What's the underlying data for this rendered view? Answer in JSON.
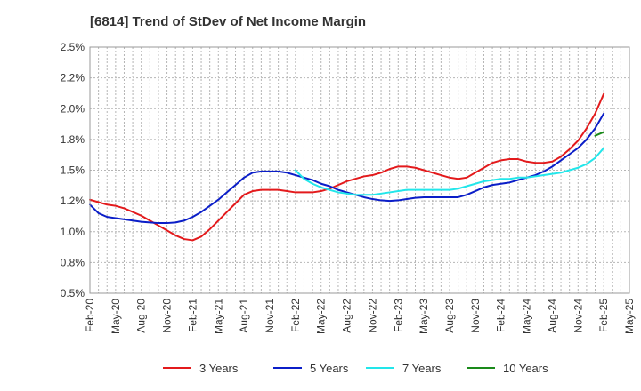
{
  "chart_data": {
    "type": "line",
    "title": "[6814]  Trend of StDev of Net Income Margin",
    "xlabel": "",
    "ylabel": "",
    "y_ticks": [
      "0.5%",
      "0.8%",
      "1.0%",
      "1.2%",
      "1.5%",
      "1.8%",
      "2.0%",
      "2.2%",
      "2.5%"
    ],
    "y_tick_values": [
      0.5,
      0.75,
      1.0,
      1.25,
      1.5,
      1.75,
      2.0,
      2.25,
      2.5
    ],
    "ylim": [
      0.5,
      2.5
    ],
    "x_ticks": [
      "Feb-20",
      "May-20",
      "Aug-20",
      "Nov-20",
      "Feb-21",
      "May-21",
      "Aug-21",
      "Nov-21",
      "Feb-22",
      "May-22",
      "Aug-22",
      "Nov-22",
      "Feb-23",
      "May-23",
      "Aug-23",
      "Nov-23",
      "Feb-24",
      "May-24",
      "Aug-24",
      "Nov-24",
      "Feb-25",
      "May-25"
    ],
    "grid": true,
    "legend_position": "bottom",
    "series": [
      {
        "name": "3 Years",
        "color": "#e31a1c",
        "points": [
          [
            "Feb-20",
            1.26
          ],
          [
            "Mar-20",
            1.24
          ],
          [
            "Apr-20",
            1.22
          ],
          [
            "May-20",
            1.21
          ],
          [
            "Jun-20",
            1.19
          ],
          [
            "Jul-20",
            1.16
          ],
          [
            "Aug-20",
            1.13
          ],
          [
            "Sep-20",
            1.09
          ],
          [
            "Oct-20",
            1.05
          ],
          [
            "Nov-20",
            1.01
          ],
          [
            "Dec-20",
            0.97
          ],
          [
            "Jan-21",
            0.94
          ],
          [
            "Feb-21",
            0.93
          ],
          [
            "Mar-21",
            0.96
          ],
          [
            "Apr-21",
            1.02
          ],
          [
            "May-21",
            1.09
          ],
          [
            "Jun-21",
            1.16
          ],
          [
            "Jul-21",
            1.23
          ],
          [
            "Aug-21",
            1.3
          ],
          [
            "Sep-21",
            1.33
          ],
          [
            "Oct-21",
            1.34
          ],
          [
            "Nov-21",
            1.34
          ],
          [
            "Dec-21",
            1.34
          ],
          [
            "Jan-22",
            1.33
          ],
          [
            "Feb-22",
            1.32
          ],
          [
            "Mar-22",
            1.32
          ],
          [
            "Apr-22",
            1.32
          ],
          [
            "May-22",
            1.33
          ],
          [
            "Jun-22",
            1.35
          ],
          [
            "Jul-22",
            1.38
          ],
          [
            "Aug-22",
            1.41
          ],
          [
            "Sep-22",
            1.43
          ],
          [
            "Oct-22",
            1.45
          ],
          [
            "Nov-22",
            1.46
          ],
          [
            "Dec-22",
            1.48
          ],
          [
            "Jan-23",
            1.51
          ],
          [
            "Feb-23",
            1.53
          ],
          [
            "Mar-23",
            1.53
          ],
          [
            "Apr-23",
            1.52
          ],
          [
            "May-23",
            1.5
          ],
          [
            "Jun-23",
            1.48
          ],
          [
            "Jul-23",
            1.46
          ],
          [
            "Aug-23",
            1.44
          ],
          [
            "Sep-23",
            1.43
          ],
          [
            "Oct-23",
            1.44
          ],
          [
            "Nov-23",
            1.48
          ],
          [
            "Dec-23",
            1.52
          ],
          [
            "Jan-24",
            1.56
          ],
          [
            "Feb-24",
            1.58
          ],
          [
            "Mar-24",
            1.59
          ],
          [
            "Apr-24",
            1.59
          ],
          [
            "May-24",
            1.57
          ],
          [
            "Jun-24",
            1.56
          ],
          [
            "Jul-24",
            1.56
          ],
          [
            "Aug-24",
            1.57
          ],
          [
            "Sep-24",
            1.61
          ],
          [
            "Oct-24",
            1.67
          ],
          [
            "Nov-24",
            1.74
          ],
          [
            "Dec-24",
            1.84
          ],
          [
            "Jan-25",
            1.96
          ],
          [
            "Feb-25",
            2.12
          ]
        ]
      },
      {
        "name": "5 Years",
        "color": "#0b1ec8",
        "points": [
          [
            "Feb-20",
            1.22
          ],
          [
            "Mar-20",
            1.15
          ],
          [
            "Apr-20",
            1.12
          ],
          [
            "May-20",
            1.11
          ],
          [
            "Jun-20",
            1.1
          ],
          [
            "Jul-20",
            1.09
          ],
          [
            "Aug-20",
            1.08
          ],
          [
            "Sep-20",
            1.075
          ],
          [
            "Oct-20",
            1.07
          ],
          [
            "Nov-20",
            1.07
          ],
          [
            "Dec-20",
            1.075
          ],
          [
            "Jan-21",
            1.09
          ],
          [
            "Feb-21",
            1.12
          ],
          [
            "Mar-21",
            1.16
          ],
          [
            "Apr-21",
            1.21
          ],
          [
            "May-21",
            1.26
          ],
          [
            "Jun-21",
            1.32
          ],
          [
            "Jul-21",
            1.38
          ],
          [
            "Aug-21",
            1.44
          ],
          [
            "Sep-21",
            1.48
          ],
          [
            "Oct-21",
            1.49
          ],
          [
            "Nov-21",
            1.49
          ],
          [
            "Dec-21",
            1.49
          ],
          [
            "Jan-22",
            1.48
          ],
          [
            "Feb-22",
            1.46
          ],
          [
            "Mar-22",
            1.44
          ],
          [
            "Apr-22",
            1.42
          ],
          [
            "May-22",
            1.39
          ],
          [
            "Jun-22",
            1.37
          ],
          [
            "Jul-22",
            1.34
          ],
          [
            "Aug-22",
            1.32
          ],
          [
            "Sep-22",
            1.3
          ],
          [
            "Oct-22",
            1.28
          ],
          [
            "Nov-22",
            1.265
          ],
          [
            "Dec-22",
            1.255
          ],
          [
            "Jan-23",
            1.25
          ],
          [
            "Feb-23",
            1.255
          ],
          [
            "Mar-23",
            1.265
          ],
          [
            "Apr-23",
            1.275
          ],
          [
            "May-23",
            1.28
          ],
          [
            "Jun-23",
            1.28
          ],
          [
            "Jul-23",
            1.28
          ],
          [
            "Aug-23",
            1.28
          ],
          [
            "Sep-23",
            1.28
          ],
          [
            "Oct-23",
            1.3
          ],
          [
            "Nov-23",
            1.33
          ],
          [
            "Dec-23",
            1.36
          ],
          [
            "Jan-24",
            1.38
          ],
          [
            "Feb-24",
            1.39
          ],
          [
            "Mar-24",
            1.4
          ],
          [
            "Apr-24",
            1.42
          ],
          [
            "May-24",
            1.44
          ],
          [
            "Jun-24",
            1.46
          ],
          [
            "Jul-24",
            1.49
          ],
          [
            "Aug-24",
            1.53
          ],
          [
            "Sep-24",
            1.58
          ],
          [
            "Oct-24",
            1.63
          ],
          [
            "Nov-24",
            1.68
          ],
          [
            "Dec-24",
            1.75
          ],
          [
            "Jan-25",
            1.84
          ],
          [
            "Feb-25",
            1.96
          ]
        ]
      },
      {
        "name": "7 Years",
        "color": "#22e6ea",
        "points": [
          [
            "Feb-22",
            1.5
          ],
          [
            "Mar-22",
            1.43
          ],
          [
            "Apr-22",
            1.39
          ],
          [
            "May-22",
            1.36
          ],
          [
            "Jun-22",
            1.34
          ],
          [
            "Jul-22",
            1.32
          ],
          [
            "Aug-22",
            1.31
          ],
          [
            "Sep-22",
            1.3
          ],
          [
            "Oct-22",
            1.3
          ],
          [
            "Nov-22",
            1.3
          ],
          [
            "Dec-22",
            1.31
          ],
          [
            "Jan-23",
            1.32
          ],
          [
            "Feb-23",
            1.33
          ],
          [
            "Mar-23",
            1.34
          ],
          [
            "Apr-23",
            1.34
          ],
          [
            "May-23",
            1.34
          ],
          [
            "Jun-23",
            1.34
          ],
          [
            "Jul-23",
            1.34
          ],
          [
            "Aug-23",
            1.34
          ],
          [
            "Sep-23",
            1.35
          ],
          [
            "Oct-23",
            1.37
          ],
          [
            "Nov-23",
            1.39
          ],
          [
            "Dec-23",
            1.41
          ],
          [
            "Jan-24",
            1.42
          ],
          [
            "Feb-24",
            1.43
          ],
          [
            "Mar-24",
            1.43
          ],
          [
            "Apr-24",
            1.44
          ],
          [
            "May-24",
            1.44
          ],
          [
            "Jun-24",
            1.45
          ],
          [
            "Jul-24",
            1.46
          ],
          [
            "Aug-24",
            1.47
          ],
          [
            "Sep-24",
            1.48
          ],
          [
            "Oct-24",
            1.5
          ],
          [
            "Nov-24",
            1.52
          ],
          [
            "Dec-24",
            1.55
          ],
          [
            "Jan-25",
            1.6
          ],
          [
            "Feb-25",
            1.68
          ]
        ]
      },
      {
        "name": "10 Years",
        "color": "#1a8a1a",
        "points": [
          [
            "Jan-25",
            1.78
          ],
          [
            "Feb-25",
            1.81
          ]
        ]
      }
    ]
  }
}
